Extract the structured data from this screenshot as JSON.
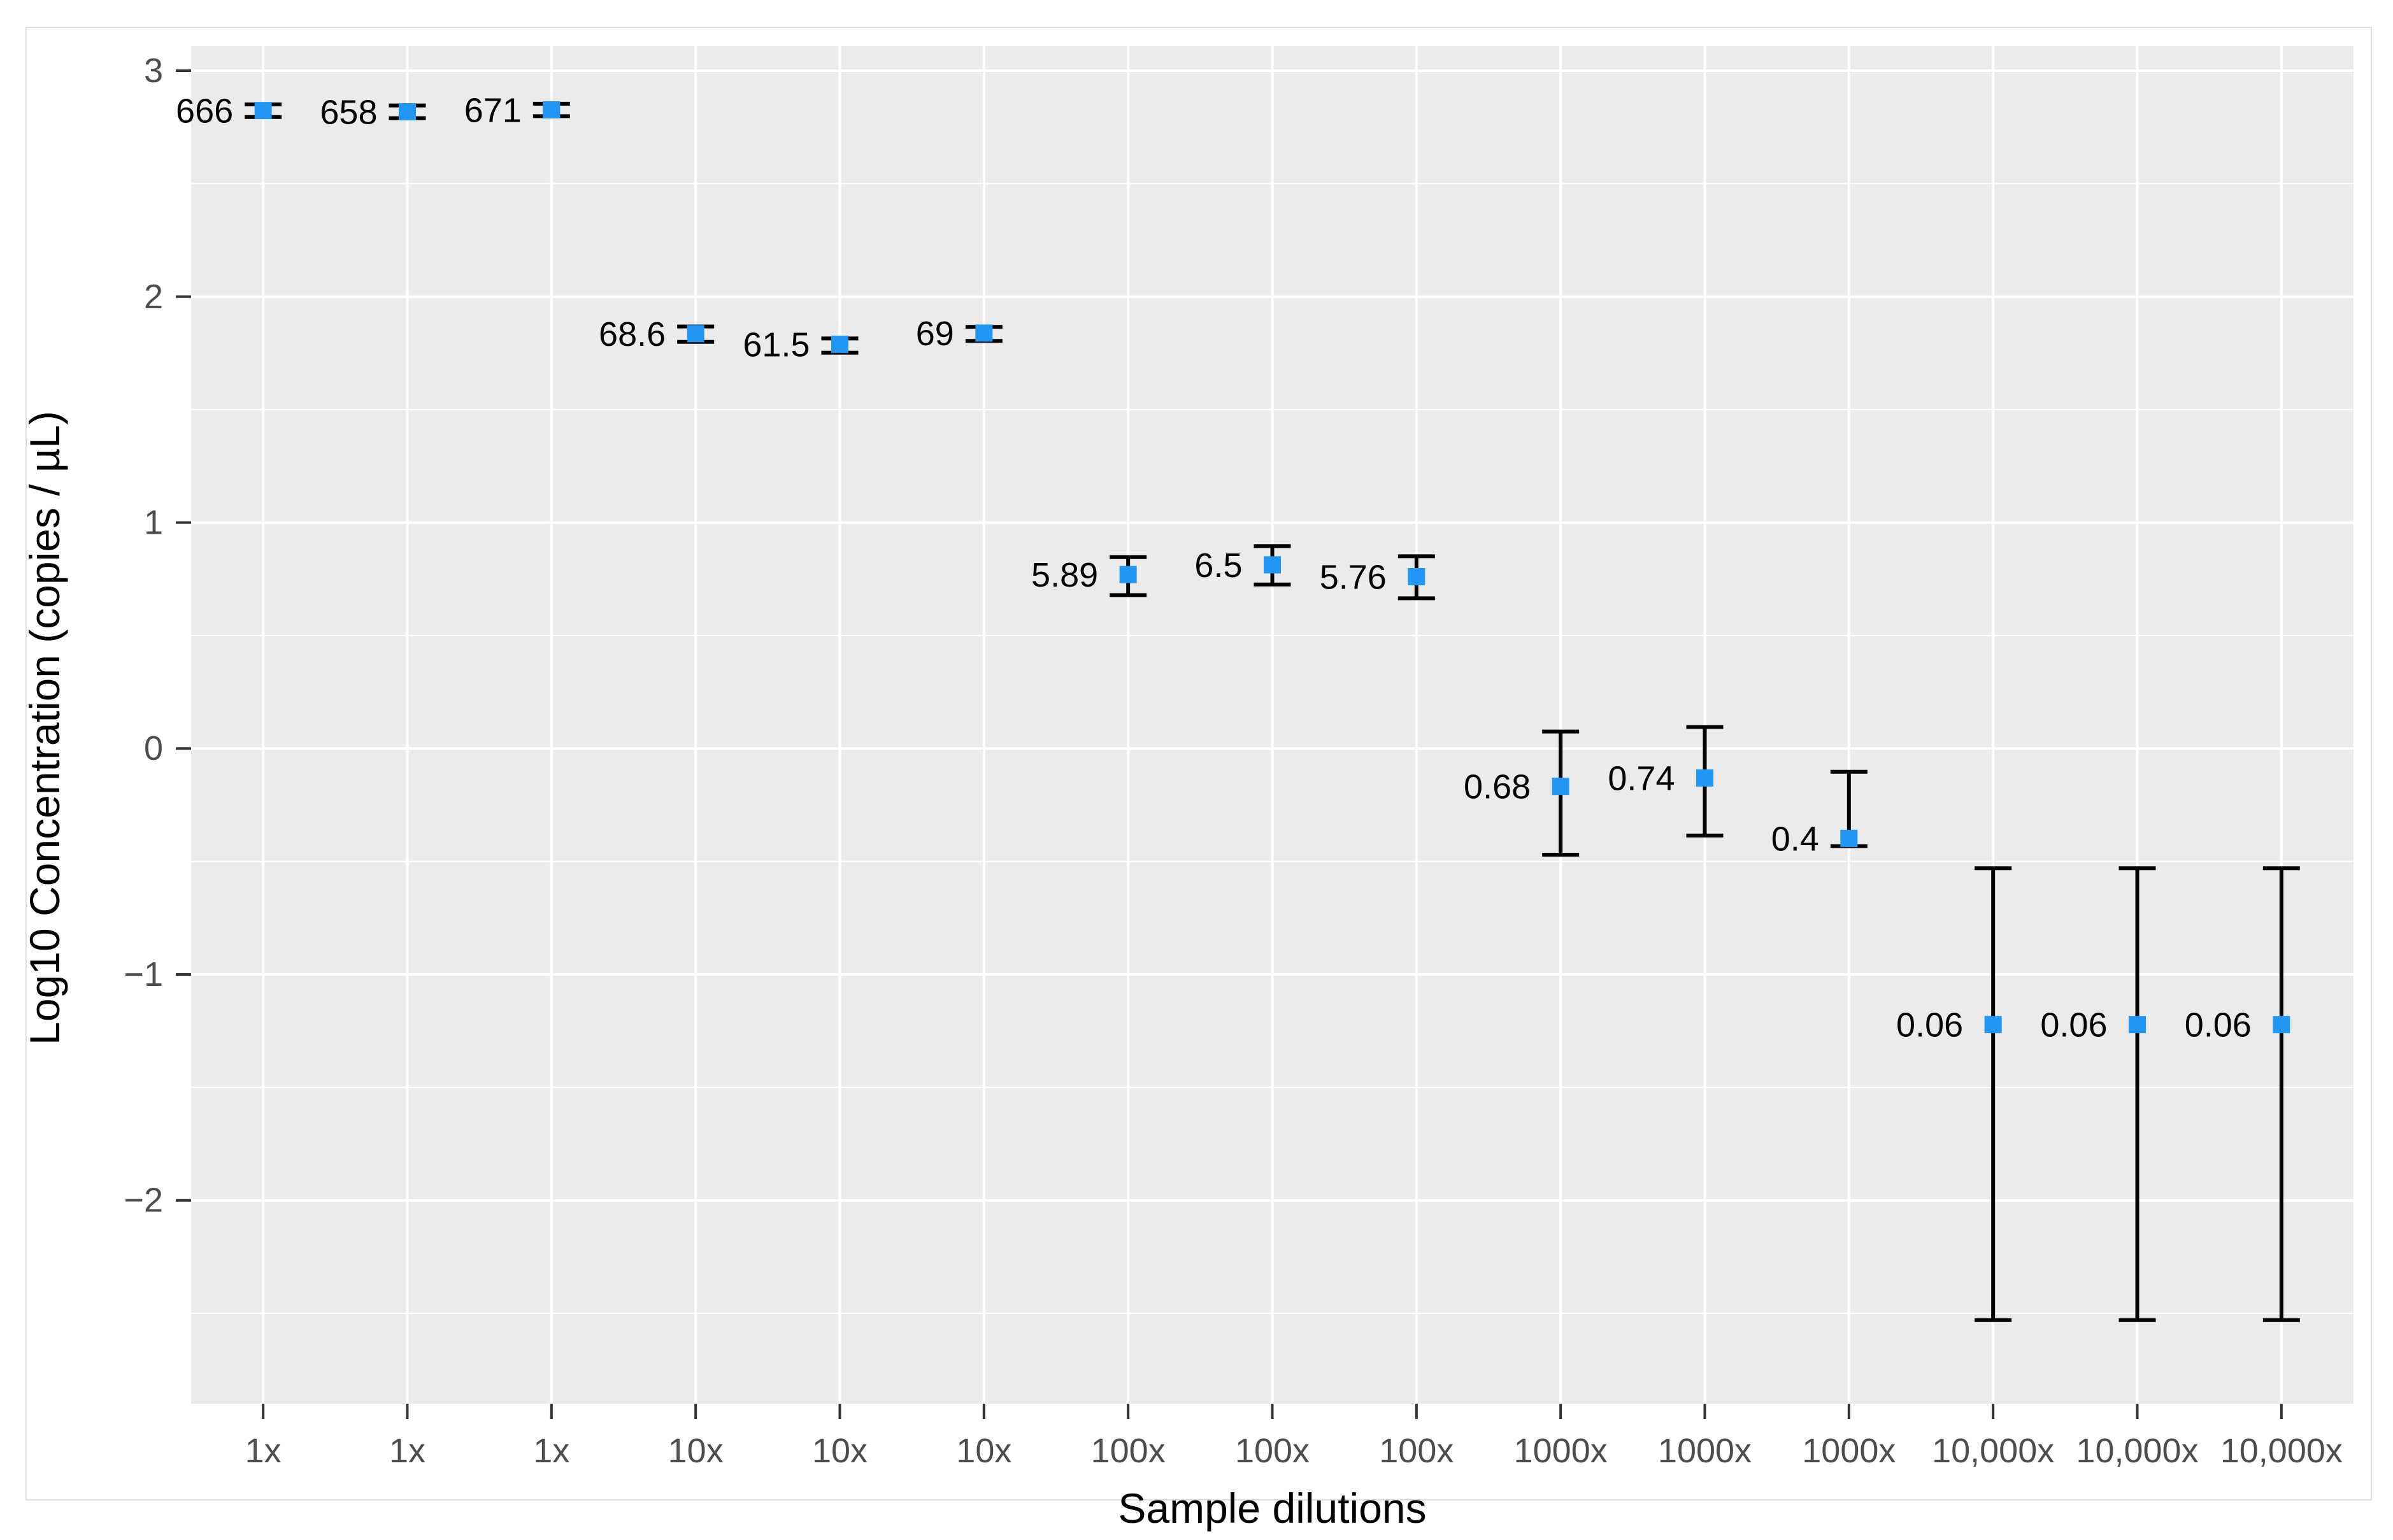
{
  "figure": {
    "background": "#ffffff",
    "border_color": "#dcdcdc"
  },
  "chart_data": {
    "type": "scatter",
    "title": "",
    "xlabel": "Sample dilutions",
    "ylabel": "Log10 Concentration (copies / µL)",
    "ylim": [
      -2.9,
      3.11
    ],
    "grid": "on",
    "legend": "none",
    "yticks": [
      {
        "value": 3,
        "label": "3"
      },
      {
        "value": 2,
        "label": "2"
      },
      {
        "value": 1,
        "label": "1"
      },
      {
        "value": 0,
        "label": "0"
      },
      {
        "value": -1,
        "label": "−1"
      },
      {
        "value": -2,
        "label": "−2"
      }
    ],
    "minor_gridlines": [
      2.5,
      1.5,
      0.5,
      -0.5,
      -1.5,
      -2.5
    ],
    "categories": [
      "1x",
      "1x",
      "1x",
      "10x",
      "10x",
      "10x",
      "100x",
      "100x",
      "100x",
      "1000x",
      "1000x",
      "1000x",
      "10,000x",
      "10,000x",
      "10,000x"
    ],
    "points": [
      {
        "dilution": "1x",
        "label": "666",
        "concentration": 666,
        "log10": 2.8235,
        "err_low": 2.795,
        "err_high": 2.851
      },
      {
        "dilution": "1x",
        "label": "658",
        "concentration": 658,
        "log10": 2.8182,
        "err_low": 2.79,
        "err_high": 2.846
      },
      {
        "dilution": "1x",
        "label": "671",
        "concentration": 671,
        "log10": 2.8267,
        "err_low": 2.799,
        "err_high": 2.854
      },
      {
        "dilution": "10x",
        "label": "68.6",
        "concentration": 68.6,
        "log10": 1.8363,
        "err_low": 1.8,
        "err_high": 1.868
      },
      {
        "dilution": "10x",
        "label": "61.5",
        "concentration": 61.5,
        "log10": 1.7889,
        "err_low": 1.752,
        "err_high": 1.815
      },
      {
        "dilution": "10x",
        "label": "69",
        "concentration": 69,
        "log10": 1.8388,
        "err_low": 1.804,
        "err_high": 1.866
      },
      {
        "dilution": "100x",
        "label": "5.89",
        "concentration": 5.89,
        "log10": 0.7701,
        "err_low": 0.679,
        "err_high": 0.847
      },
      {
        "dilution": "100x",
        "label": "6.5",
        "concentration": 6.5,
        "log10": 0.8129,
        "err_low": 0.726,
        "err_high": 0.896
      },
      {
        "dilution": "100x",
        "label": "5.76",
        "concentration": 5.76,
        "log10": 0.7604,
        "err_low": 0.665,
        "err_high": 0.851
      },
      {
        "dilution": "1000x",
        "label": "0.68",
        "concentration": 0.68,
        "log10": -0.1675,
        "err_low": -0.47,
        "err_high": 0.075
      },
      {
        "dilution": "1000x",
        "label": "0.74",
        "concentration": 0.74,
        "log10": -0.1308,
        "err_low": -0.385,
        "err_high": 0.095
      },
      {
        "dilution": "1000x",
        "label": "0.4",
        "concentration": 0.4,
        "log10": -0.3979,
        "err_low": -0.432,
        "err_high": -0.103
      },
      {
        "dilution": "10,000x",
        "label": "0.06",
        "concentration": 0.06,
        "log10": -1.2218,
        "err_low": -2.53,
        "err_high": -0.53
      },
      {
        "dilution": "10,000x",
        "label": "0.06",
        "concentration": 0.06,
        "log10": -1.2218,
        "err_low": -2.53,
        "err_high": -0.53
      },
      {
        "dilution": "10,000x",
        "label": "0.06",
        "concentration": 0.06,
        "log10": -1.2218,
        "err_low": -2.53,
        "err_high": -0.53
      }
    ],
    "colors": {
      "panel": "#ebebeb",
      "grid": "#ffffff",
      "point": "#2196f3",
      "error_bar": "#000000",
      "tick_mark": "#333333",
      "tick_label": "#4d4d4d",
      "data_label": "#000000",
      "axis_title": "#000000"
    }
  }
}
